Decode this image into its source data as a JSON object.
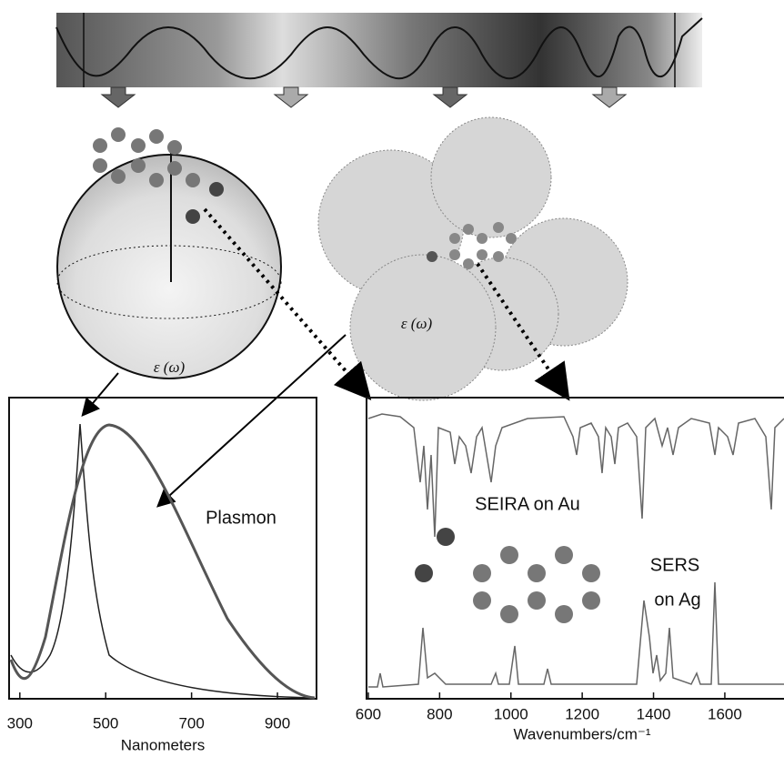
{
  "sphere_label": "ε (ω)",
  "cluster_label": "ε (ω)",
  "plasmon_panel": {
    "annotation": "Plasmon",
    "x_label": "Nanometers",
    "xlim": [
      275,
      991
    ],
    "xticks": [
      300,
      500,
      700,
      900
    ]
  },
  "vibration_panel": {
    "annotations": [
      "SEIRA on Au",
      "SERS",
      "on Ag"
    ],
    "x_label": "Wavenumbers/cm⁻¹",
    "xlim": [
      595,
      1766
    ],
    "xticks": [
      600,
      800,
      1000,
      1200,
      1400,
      1600
    ]
  }
}
